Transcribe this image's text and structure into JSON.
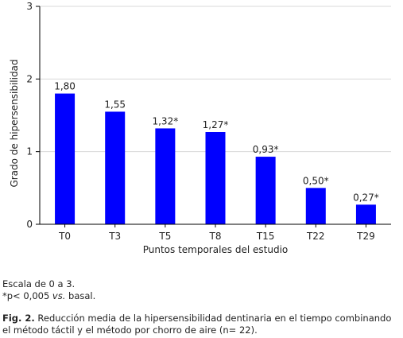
{
  "chart_data": {
    "type": "bar",
    "categories": [
      "T0",
      "T3",
      "T5",
      "T8",
      "T15",
      "T22",
      "T29"
    ],
    "values": [
      1.8,
      1.55,
      1.32,
      1.27,
      0.93,
      0.5,
      0.27
    ],
    "data_labels": [
      "1,80",
      "1,55",
      "1,32*",
      "1,27*",
      "0,93*",
      "0,50*",
      "0,27*"
    ],
    "y_ticks": [
      0,
      1,
      2,
      3
    ],
    "y_tick_labels": [
      "0",
      "1",
      "2",
      "3"
    ],
    "ylim": [
      0,
      3
    ],
    "xlabel": "Puntos temporales del estudio",
    "ylabel": "Grado de hipersensibilidad",
    "grid": true,
    "bar_color": "#0000ff",
    "gridline_color": "#d9d9d9"
  },
  "notes": {
    "scale": "Escala de 0 a 3.",
    "significance_prefix": "*p< 0,005 ",
    "significance_italic": "vs.",
    "significance_suffix": " basal."
  },
  "caption": {
    "label": "Fig. 2.",
    "text": " Reducción media de la hipersensibilidad dentinaria en el tiempo combinando el método táctil y el método por chorro de aire (n= 22)."
  }
}
